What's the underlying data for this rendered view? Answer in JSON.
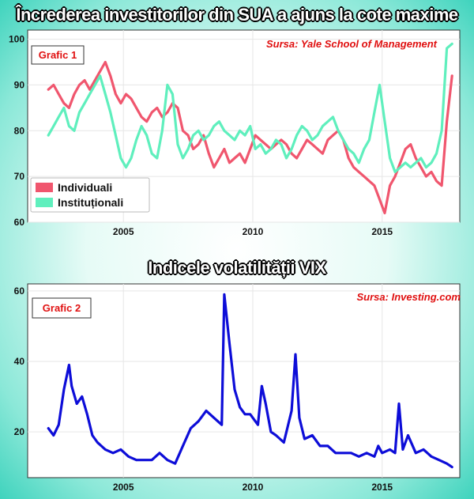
{
  "titles": {
    "chart1": "Încrederea investitorilor din SUA a ajuns la cote maxime",
    "chart2": "Indicele volatilității VIX"
  },
  "colors": {
    "individuali": "#f0566e",
    "institutionali": "#5fefbd",
    "vix": "#0d0dd8",
    "badge": "#e01010"
  },
  "chart_data": [
    {
      "type": "line",
      "title": "Încrederea investitorilor din SUA a ajuns la cote maxime",
      "badge": "Grafic 1",
      "source": "Sursa: Yale School of Management",
      "xlabel": "",
      "ylabel": "",
      "xlim": [
        2001.3,
        2018.0
      ],
      "ylim": [
        60,
        102
      ],
      "xticks": [
        2005,
        2010,
        2015
      ],
      "yticks": [
        60,
        70,
        80,
        90,
        100
      ],
      "grid": true,
      "legend_position": "bottom-left",
      "series": [
        {
          "name": "Individuali",
          "x": [
            2002.1,
            2002.3,
            2002.5,
            2002.7,
            2002.9,
            2003.1,
            2003.3,
            2003.5,
            2003.7,
            2003.9,
            2004.1,
            2004.3,
            2004.5,
            2004.7,
            2004.9,
            2005.1,
            2005.3,
            2005.5,
            2005.7,
            2005.9,
            2006.1,
            2006.3,
            2006.5,
            2006.7,
            2006.9,
            2007.1,
            2007.3,
            2007.5,
            2007.7,
            2007.9,
            2008.1,
            2008.3,
            2008.5,
            2008.7,
            2008.9,
            2009.1,
            2009.3,
            2009.5,
            2009.7,
            2009.9,
            2010.1,
            2010.3,
            2010.5,
            2010.7,
            2010.9,
            2011.1,
            2011.3,
            2011.5,
            2011.7,
            2011.9,
            2012.1,
            2012.3,
            2012.5,
            2012.7,
            2012.9,
            2013.1,
            2013.3,
            2013.5,
            2013.7,
            2013.9,
            2014.1,
            2014.3,
            2014.5,
            2014.7,
            2014.9,
            2015.1,
            2015.3,
            2015.5,
            2015.7,
            2015.9,
            2016.1,
            2016.3,
            2016.5,
            2016.7,
            2016.9,
            2017.1,
            2017.3,
            2017.5,
            2017.7
          ],
          "values": [
            89,
            90,
            88,
            86,
            85,
            88,
            90,
            91,
            89,
            91,
            93,
            95,
            92,
            88,
            86,
            88,
            87,
            85,
            83,
            82,
            84,
            85,
            83,
            84,
            86,
            85,
            80,
            79,
            76,
            77,
            79,
            75,
            72,
            74,
            76,
            73,
            74,
            75,
            73,
            76,
            79,
            78,
            77,
            76,
            77,
            78,
            77,
            75,
            74,
            76,
            78,
            77,
            76,
            75,
            78,
            79,
            80,
            78,
            74,
            72,
            71,
            70,
            69,
            68,
            65,
            62,
            68,
            70,
            73,
            76,
            77,
            74,
            72,
            70,
            71,
            69,
            68,
            82,
            92
          ]
        },
        {
          "name": "Instituționali",
          "x": [
            2002.1,
            2002.3,
            2002.5,
            2002.7,
            2002.9,
            2003.1,
            2003.3,
            2003.5,
            2003.7,
            2003.9,
            2004.1,
            2004.3,
            2004.5,
            2004.7,
            2004.9,
            2005.1,
            2005.3,
            2005.5,
            2005.7,
            2005.9,
            2006.1,
            2006.3,
            2006.5,
            2006.7,
            2006.9,
            2007.1,
            2007.3,
            2007.5,
            2007.7,
            2007.9,
            2008.1,
            2008.3,
            2008.5,
            2008.7,
            2008.9,
            2009.1,
            2009.3,
            2009.5,
            2009.7,
            2009.9,
            2010.1,
            2010.3,
            2010.5,
            2010.7,
            2010.9,
            2011.1,
            2011.3,
            2011.5,
            2011.7,
            2011.9,
            2012.1,
            2012.3,
            2012.5,
            2012.7,
            2012.9,
            2013.1,
            2013.3,
            2013.5,
            2013.7,
            2013.9,
            2014.1,
            2014.3,
            2014.5,
            2014.7,
            2014.9,
            2015.1,
            2015.3,
            2015.5,
            2015.7,
            2015.9,
            2016.1,
            2016.3,
            2016.5,
            2016.7,
            2016.9,
            2017.1,
            2017.3,
            2017.5,
            2017.7
          ],
          "values": [
            79,
            81,
            83,
            85,
            81,
            80,
            84,
            86,
            88,
            90,
            92,
            88,
            84,
            79,
            74,
            72,
            74,
            78,
            81,
            79,
            75,
            74,
            80,
            90,
            88,
            77,
            74,
            76,
            79,
            80,
            78,
            79,
            81,
            82,
            80,
            79,
            78,
            80,
            79,
            81,
            76,
            77,
            75,
            76,
            78,
            77,
            74,
            76,
            79,
            81,
            80,
            78,
            79,
            81,
            82,
            83,
            80,
            78,
            76,
            75,
            73,
            76,
            78,
            84,
            90,
            82,
            74,
            71,
            72,
            73,
            72,
            73,
            74,
            72,
            73,
            75,
            80,
            98,
            99
          ]
        }
      ]
    },
    {
      "type": "line",
      "title": "Indicele volatilității VIX",
      "badge": "Grafic 2",
      "source": "Sursa: Investing.com",
      "xlabel": "",
      "ylabel": "",
      "xlim": [
        2001.3,
        2018.0
      ],
      "ylim": [
        7,
        62
      ],
      "xticks": [
        2005,
        2010,
        2015
      ],
      "yticks": [
        20,
        40,
        60
      ],
      "grid": true,
      "series": [
        {
          "name": "VIX",
          "x": [
            2002.1,
            2002.3,
            2002.5,
            2002.7,
            2002.9,
            2003.0,
            2003.2,
            2003.4,
            2003.6,
            2003.8,
            2004.0,
            2004.3,
            2004.6,
            2004.9,
            2005.2,
            2005.5,
            2005.8,
            2006.1,
            2006.4,
            2006.7,
            2007.0,
            2007.3,
            2007.6,
            2007.9,
            2008.2,
            2008.5,
            2008.8,
            2008.9,
            2009.1,
            2009.3,
            2009.5,
            2009.7,
            2009.9,
            2010.2,
            2010.35,
            2010.5,
            2010.7,
            2010.9,
            2011.2,
            2011.5,
            2011.65,
            2011.8,
            2012.0,
            2012.3,
            2012.6,
            2012.9,
            2013.2,
            2013.5,
            2013.8,
            2014.1,
            2014.4,
            2014.7,
            2014.85,
            2015.0,
            2015.3,
            2015.5,
            2015.65,
            2015.8,
            2016.0,
            2016.3,
            2016.6,
            2016.9,
            2017.2,
            2017.5,
            2017.7
          ],
          "values": [
            21,
            19,
            22,
            32,
            39,
            33,
            28,
            30,
            25,
            19,
            17,
            15,
            14,
            15,
            13,
            12,
            12,
            12,
            14,
            12,
            11,
            16,
            21,
            23,
            26,
            24,
            22,
            59,
            45,
            32,
            27,
            25,
            25,
            22,
            33,
            28,
            20,
            19,
            17,
            26,
            42,
            24,
            18,
            19,
            16,
            16,
            14,
            14,
            14,
            13,
            14,
            13,
            16,
            14,
            15,
            14,
            28,
            15,
            19,
            14,
            15,
            13,
            12,
            11,
            10
          ]
        }
      ]
    }
  ]
}
